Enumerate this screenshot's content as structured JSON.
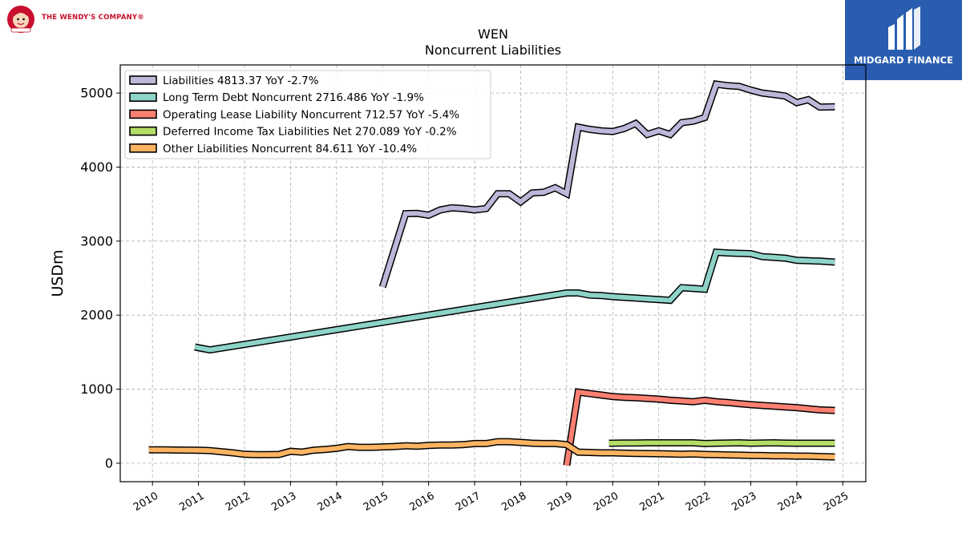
{
  "branding": {
    "left_logo_text": "THE WENDY'S COMPANY®",
    "right_logo_text": "MIDGARD FINANCE",
    "right_logo_color": "#2a5db0",
    "left_logo_color": "#c8102e"
  },
  "chart_data": {
    "type": "line",
    "title": "WEN",
    "subtitle": "Noncurrent  Liabilities",
    "ylabel": "USDm",
    "xlabel": "",
    "xlim": [
      2009.3,
      2025.5
    ],
    "ylim": [
      -250,
      5380
    ],
    "x_ticks": [
      2010,
      2011,
      2012,
      2013,
      2014,
      2015,
      2016,
      2017,
      2018,
      2019,
      2020,
      2021,
      2022,
      2023,
      2024,
      2025
    ],
    "y_ticks": [
      0,
      1000,
      2000,
      3000,
      4000,
      5000
    ],
    "grid": true,
    "legend_position": "top-left",
    "series": [
      {
        "name": "Liabilities",
        "legend": "Liabilities  4813.37 YoY -2.7%",
        "color": "#bcb8d9",
        "x": [
          2015.0,
          2015.5,
          2015.75,
          2016.0,
          2016.25,
          2016.5,
          2016.75,
          2017.0,
          2017.25,
          2017.5,
          2017.75,
          2018.0,
          2018.25,
          2018.5,
          2018.75,
          2019.0,
          2019.25,
          2019.5,
          2019.75,
          2020.0,
          2020.25,
          2020.5,
          2020.75,
          2021.0,
          2021.25,
          2021.5,
          2021.75,
          2022.0,
          2022.25,
          2022.5,
          2022.75,
          2023.0,
          2023.25,
          2023.5,
          2023.75,
          2024.0,
          2024.25,
          2024.5,
          2024.83
        ],
        "y": [
          2380,
          3370,
          3375,
          3350,
          3420,
          3450,
          3440,
          3420,
          3440,
          3640,
          3640,
          3530,
          3650,
          3660,
          3720,
          3640,
          4540,
          4510,
          4490,
          4480,
          4520,
          4590,
          4440,
          4490,
          4440,
          4600,
          4620,
          4670,
          5120,
          5100,
          5090,
          5040,
          5000,
          4980,
          4960,
          4870,
          4910,
          4810,
          4813.37
        ]
      },
      {
        "name": "Long Term Debt Noncurrent",
        "legend": "Long Term Debt Noncurrent  2716.486 YoY -1.9%",
        "color": "#8dd3c7",
        "x": [
          2010.92,
          2011.25,
          2019.0,
          2019.25,
          2019.5,
          2019.75,
          2020.0,
          2020.25,
          2020.5,
          2020.75,
          2021.0,
          2021.25,
          2021.5,
          2021.75,
          2022.0,
          2022.25,
          2022.5,
          2022.75,
          2023.0,
          2023.25,
          2023.5,
          2023.75,
          2024.0,
          2024.25,
          2024.5,
          2024.83
        ],
        "y": [
          1570,
          1530,
          2300,
          2300,
          2270,
          2265,
          2250,
          2240,
          2230,
          2220,
          2210,
          2200,
          2370,
          2360,
          2350,
          2850,
          2840,
          2835,
          2830,
          2790,
          2780,
          2770,
          2740,
          2735,
          2730,
          2716.486
        ]
      },
      {
        "name": "Operating Lease Liability Noncurrent",
        "legend": "Operating Lease Liability Noncurrent  712.57 YoY -5.4%",
        "color": "#fb8072",
        "x": [
          2019.0,
          2019.25,
          2019.5,
          2019.75,
          2020.0,
          2020.25,
          2020.5,
          2020.75,
          2021.0,
          2021.25,
          2021.5,
          2021.75,
          2022.0,
          2022.25,
          2022.5,
          2022.75,
          2023.0,
          2023.25,
          2023.5,
          2023.75,
          2024.0,
          2024.25,
          2024.5,
          2024.83
        ],
        "y": [
          -30,
          960,
          940,
          920,
          900,
          890,
          885,
          875,
          865,
          850,
          840,
          830,
          850,
          830,
          820,
          805,
          790,
          780,
          770,
          760,
          750,
          735,
          720,
          712.57
        ]
      },
      {
        "name": "Deferred Income Tax Liabilities Net",
        "legend": "Deferred Income Tax Liabilities Net  270.089 YoY -0.2%",
        "color": "#b3de69",
        "x": [
          2019.92,
          2020.25,
          2020.5,
          2020.75,
          2021.0,
          2021.25,
          2021.5,
          2021.75,
          2022.0,
          2022.25,
          2022.5,
          2022.75,
          2023.0,
          2023.25,
          2023.5,
          2023.75,
          2024.0,
          2024.25,
          2024.5,
          2024.83
        ],
        "y": [
          270,
          272,
          272,
          275,
          275,
          275,
          275,
          275,
          265,
          270,
          272,
          275,
          270,
          272,
          275,
          271,
          270,
          270,
          270,
          270.089
        ]
      },
      {
        "name": "Other Liabilities Noncurrent",
        "legend": "Other Liabilities Noncurrent  84.611 YoY -10.4%",
        "color": "#fdb462",
        "x": [
          2009.92,
          2010.25,
          2010.5,
          2010.75,
          2011.0,
          2011.25,
          2011.5,
          2011.75,
          2012.0,
          2012.25,
          2012.5,
          2012.75,
          2013.0,
          2013.25,
          2013.5,
          2013.75,
          2014.0,
          2014.25,
          2014.5,
          2014.75,
          2015.0,
          2015.25,
          2015.5,
          2015.75,
          2016.0,
          2016.25,
          2016.5,
          2016.75,
          2017.0,
          2017.25,
          2017.5,
          2017.75,
          2018.0,
          2018.25,
          2018.5,
          2018.75,
          2019.0,
          2019.25,
          2019.5,
          2019.75,
          2020.0,
          2020.25,
          2020.5,
          2020.75,
          2021.0,
          2021.25,
          2021.5,
          2021.75,
          2022.0,
          2022.25,
          2022.5,
          2022.75,
          2023.0,
          2023.25,
          2023.5,
          2023.75,
          2024.0,
          2024.25,
          2024.5,
          2024.83
        ],
        "y": [
          180,
          180,
          178,
          177,
          175,
          170,
          155,
          140,
          120,
          115,
          115,
          118,
          160,
          150,
          175,
          185,
          200,
          225,
          215,
          215,
          220,
          225,
          235,
          230,
          240,
          245,
          245,
          250,
          265,
          265,
          290,
          290,
          280,
          270,
          265,
          265,
          250,
          150,
          145,
          140,
          140,
          135,
          132,
          130,
          128,
          125,
          120,
          125,
          118,
          115,
          112,
          108,
          105,
          103,
          100,
          100,
          95,
          95,
          90,
          84.611
        ]
      }
    ]
  }
}
